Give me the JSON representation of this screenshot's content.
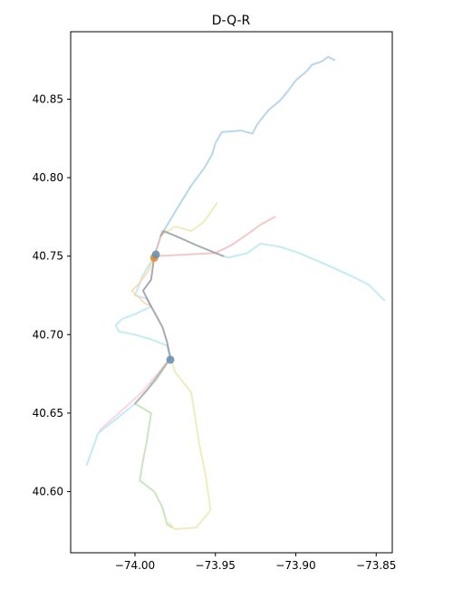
{
  "chart_data": {
    "type": "line",
    "title": "D-Q-R",
    "xlabel": "",
    "ylabel": "",
    "xlim": [
      -74.04,
      -73.84
    ],
    "ylim": [
      40.561,
      40.893
    ],
    "x_ticks": [
      -74.0,
      -73.95,
      -73.9,
      -73.85
    ],
    "x_tick_labels": [
      "−74.00",
      "−73.95",
      "−73.90",
      "−73.85"
    ],
    "y_ticks": [
      40.6,
      40.65,
      40.7,
      40.75,
      40.8,
      40.85
    ],
    "y_tick_labels": [
      "40.60",
      "40.65",
      "40.70",
      "40.75",
      "40.80",
      "40.85"
    ],
    "grid": false,
    "series": [
      {
        "color": "#9ec9e6",
        "points": [
          [
            -73.988,
            40.75
          ],
          [
            -73.984,
            40.763
          ],
          [
            -73.974,
            40.78
          ],
          [
            -73.965,
            40.795
          ],
          [
            -73.957,
            40.806
          ],
          [
            -73.952,
            40.815
          ],
          [
            -73.95,
            40.822
          ],
          [
            -73.946,
            40.829
          ],
          [
            -73.934,
            40.83
          ],
          [
            -73.927,
            40.828
          ],
          [
            -73.924,
            40.834
          ],
          [
            -73.917,
            40.843
          ],
          [
            -73.91,
            40.849
          ],
          [
            -73.905,
            40.855
          ],
          [
            -73.9,
            40.862
          ],
          [
            -73.893,
            40.868
          ],
          [
            -73.89,
            40.872
          ],
          [
            -73.884,
            40.874
          ],
          [
            -73.88,
            40.877
          ],
          [
            -73.876,
            40.875
          ]
        ]
      },
      {
        "color": "#aee5ef",
        "points": [
          [
            -73.988,
            40.75
          ],
          [
            -73.983,
            40.766
          ],
          [
            -73.975,
            40.763
          ],
          [
            -73.962,
            40.757
          ],
          [
            -73.95,
            40.752
          ],
          [
            -73.942,
            40.749
          ],
          [
            -73.93,
            40.752
          ],
          [
            -73.922,
            40.758
          ],
          [
            -73.91,
            40.756
          ],
          [
            -73.898,
            40.752
          ],
          [
            -73.882,
            40.745
          ],
          [
            -73.867,
            40.738
          ],
          [
            -73.855,
            40.732
          ],
          [
            -73.845,
            40.722
          ]
        ]
      },
      {
        "color": "#aee5ef",
        "points": [
          [
            -73.988,
            40.75
          ],
          [
            -73.995,
            40.738
          ],
          [
            -74.0,
            40.725
          ],
          [
            -73.993,
            40.723
          ],
          [
            -73.99,
            40.718
          ],
          [
            -74.0,
            40.713
          ],
          [
            -74.008,
            40.71
          ],
          [
            -74.012,
            40.706
          ],
          [
            -74.01,
            40.702
          ],
          [
            -74.0,
            40.7
          ],
          [
            -73.99,
            40.697
          ],
          [
            -73.98,
            40.693
          ],
          [
            -73.978,
            40.685
          ]
        ]
      },
      {
        "color": "#aee5ef",
        "points": [
          [
            -73.978,
            40.685
          ],
          [
            -73.987,
            40.671
          ],
          [
            -74.0,
            40.656
          ],
          [
            -74.012,
            40.646
          ],
          [
            -74.023,
            40.637
          ],
          [
            -74.03,
            40.617
          ]
        ]
      },
      {
        "color": "#b9dcaa",
        "points": [
          [
            -73.978,
            40.685
          ],
          [
            -73.987,
            40.671
          ],
          [
            -74.0,
            40.656
          ],
          [
            -73.99,
            40.65
          ],
          [
            -73.993,
            40.63
          ],
          [
            -73.995,
            40.62
          ],
          [
            -73.997,
            40.607
          ],
          [
            -73.988,
            40.6
          ],
          [
            -73.983,
            40.59
          ],
          [
            -73.98,
            40.579
          ],
          [
            -73.977,
            40.577
          ]
        ]
      },
      {
        "color": "#e9e7a4",
        "points": [
          [
            -73.978,
            40.685
          ],
          [
            -73.975,
            40.676
          ],
          [
            -73.965,
            40.663
          ],
          [
            -73.963,
            40.65
          ],
          [
            -73.96,
            40.63
          ],
          [
            -73.956,
            40.61
          ],
          [
            -73.953,
            40.588
          ],
          [
            -73.962,
            40.577
          ],
          [
            -73.975,
            40.576
          ],
          [
            -73.979,
            40.58
          ]
        ]
      },
      {
        "color": "#e9e7a4",
        "points": [
          [
            -73.984,
            40.763
          ],
          [
            -73.975,
            40.769
          ],
          [
            -73.965,
            40.766
          ],
          [
            -73.957,
            40.772
          ],
          [
            -73.949,
            40.784
          ]
        ]
      },
      {
        "color": "#ffd2a4",
        "points": [
          [
            -73.988,
            40.75
          ],
          [
            -73.992,
            40.74
          ],
          [
            -73.998,
            40.732
          ],
          [
            -74.002,
            40.728
          ],
          [
            -73.994,
            40.72
          ],
          [
            -73.99,
            40.718
          ]
        ]
      },
      {
        "color": "#f2b6b6",
        "points": [
          [
            -73.983,
            40.766
          ],
          [
            -73.986,
            40.756
          ],
          [
            -73.988,
            40.75
          ],
          [
            -73.95,
            40.752
          ],
          [
            -73.94,
            40.757
          ],
          [
            -73.93,
            40.764
          ],
          [
            -73.922,
            40.77
          ],
          [
            -73.913,
            40.775
          ]
        ]
      },
      {
        "color": "#f8c8dc",
        "points": [
          [
            -73.978,
            40.685
          ],
          [
            -73.995,
            40.664
          ],
          [
            -74.01,
            40.65
          ],
          [
            -74.022,
            40.639
          ]
        ]
      },
      {
        "color": "#9b9b9b",
        "points": [
          [
            -73.984,
            40.763
          ],
          [
            -73.982,
            40.766
          ],
          [
            -73.975,
            40.763
          ],
          [
            -73.962,
            40.757
          ],
          [
            -73.95,
            40.752
          ],
          [
            -73.945,
            40.75
          ]
        ]
      },
      {
        "color": "#8c8c9c",
        "points": [
          [
            -73.988,
            40.75
          ],
          [
            -73.99,
            40.735
          ],
          [
            -73.995,
            40.728
          ],
          [
            -73.99,
            40.718
          ],
          [
            -73.983,
            40.705
          ],
          [
            -73.98,
            40.695
          ],
          [
            -73.978,
            40.685
          ]
        ]
      },
      {
        "color": "#a8a8a8",
        "points": [
          [
            -73.978,
            40.685
          ],
          [
            -73.985,
            40.675
          ],
          [
            -73.993,
            40.664
          ],
          [
            -74.0,
            40.656
          ]
        ]
      }
    ],
    "markers": [
      {
        "color": "#e98b2a",
        "point": [
          -73.988,
          40.749
        ]
      },
      {
        "color": "#6b92b2",
        "point": [
          -73.978,
          40.684
        ]
      },
      {
        "color": "#6b92b2",
        "point": [
          -73.987,
          40.751
        ]
      }
    ]
  }
}
